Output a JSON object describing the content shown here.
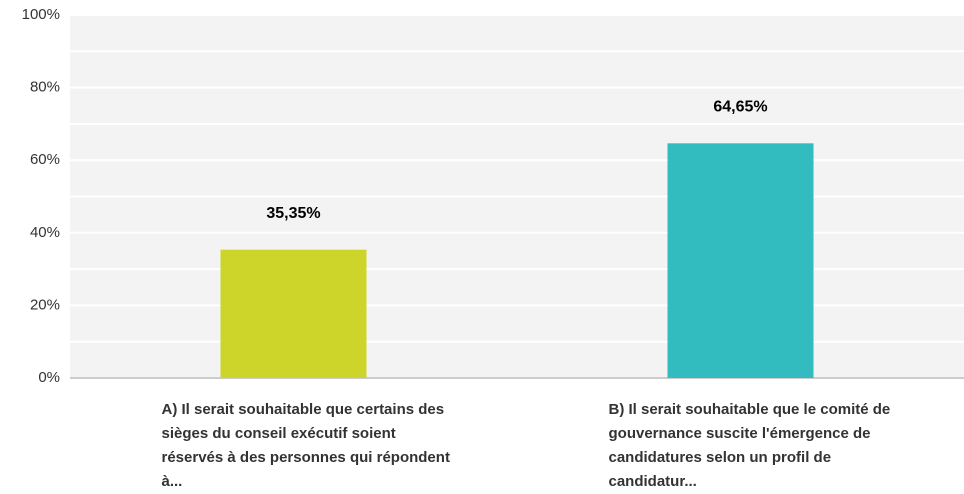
{
  "chart_data": {
    "type": "bar",
    "categories": [
      "A) Il serait souhaitable que certains des sièges du conseil exécutif soient réservés à des personnes qui répondent à...",
      "B) Il serait souhaitable que le comité de gouvernance suscite l'émergence de candidatures selon un profil de candidatur..."
    ],
    "values": [
      35.35,
      64.65
    ],
    "value_labels": [
      "35,35%",
      "64,65%"
    ],
    "colors": [
      "#cdd42a",
      "#33bcbf"
    ],
    "ylim": [
      0,
      100
    ],
    "yticks": [
      {
        "value": 0,
        "label": "0%"
      },
      {
        "value": 20,
        "label": "20%"
      },
      {
        "value": 40,
        "label": "40%"
      },
      {
        "value": 60,
        "label": "60%"
      },
      {
        "value": 80,
        "label": "80%"
      },
      {
        "value": 100,
        "label": "100%"
      }
    ],
    "minor_yticks": [
      10,
      30,
      50,
      70,
      90
    ],
    "grid": true
  }
}
